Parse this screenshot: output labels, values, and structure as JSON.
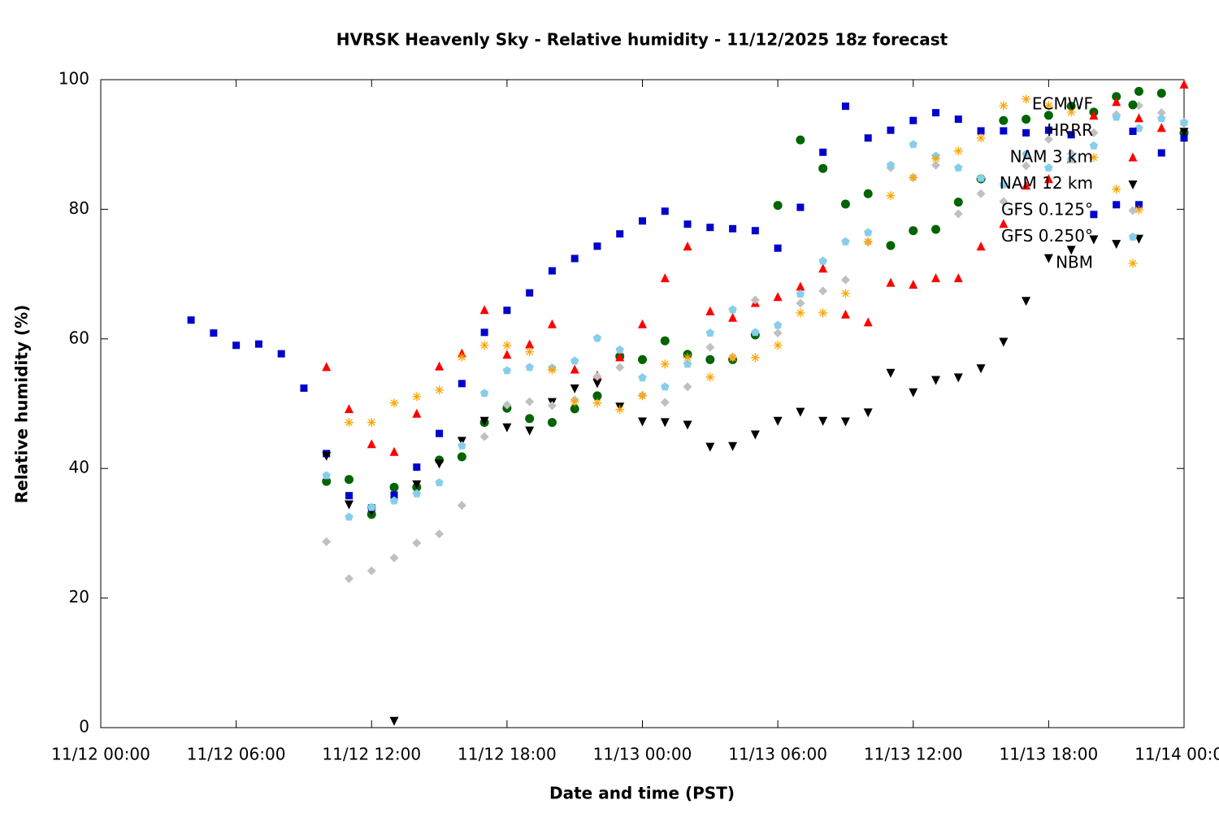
{
  "chart_data": {
    "type": "scatter",
    "title": "HVRSK Heavenly Sky - Relative humidity - 11/12/2025 18z forecast",
    "x_label": "Date and time (PST)",
    "y_label": "Relative humidity (%)",
    "xlim": [
      "11/12 00:00",
      "11/14 00:00"
    ],
    "xticks": [
      "11/12 00:00",
      "11/12 06:00",
      "11/12 12:00",
      "11/12 18:00",
      "11/13 00:00",
      "11/13 06:00",
      "11/13 12:00",
      "11/13 18:00",
      "11/14 00:00"
    ],
    "ylim": [
      0,
      100
    ],
    "yticks": [
      0,
      20,
      40,
      60,
      80,
      100
    ],
    "grid": false,
    "legend": "top-right",
    "x": [
      "11/12 04:00",
      "11/12 05:00",
      "11/12 06:00",
      "11/12 07:00",
      "11/12 08:00",
      "11/12 09:00",
      "11/12 10:00",
      "11/12 11:00",
      "11/12 12:00",
      "11/12 13:00",
      "11/12 14:00",
      "11/12 15:00",
      "11/12 16:00",
      "11/12 17:00",
      "11/12 18:00",
      "11/12 19:00",
      "11/12 20:00",
      "11/12 21:00",
      "11/12 22:00",
      "11/12 23:00",
      "11/13 00:00",
      "11/13 01:00",
      "11/13 02:00",
      "11/13 03:00",
      "11/13 04:00",
      "11/13 05:00",
      "11/13 06:00",
      "11/13 07:00",
      "11/13 08:00",
      "11/13 09:00",
      "11/13 10:00",
      "11/13 11:00",
      "11/13 12:00",
      "11/13 13:00",
      "11/13 14:00",
      "11/13 15:00",
      "11/13 16:00",
      "11/13 17:00",
      "11/13 18:00",
      "11/13 19:00",
      "11/13 20:00",
      "11/13 21:00",
      "11/13 22:00",
      "11/13 23:00",
      "11/14 00:00"
    ],
    "series": [
      {
        "name": "ECMWF",
        "color": "#006400",
        "marker": "circle",
        "values": [
          null,
          null,
          null,
          null,
          null,
          null,
          38.0,
          38.3,
          32.9,
          37.1,
          37.1,
          41.3,
          41.8,
          47.1,
          49.3,
          47.7,
          47.1,
          49.2,
          51.2,
          57.3,
          56.8,
          59.7,
          57.6,
          56.8,
          56.8,
          60.6,
          80.6,
          90.7,
          86.3,
          80.8,
          82.4,
          74.4,
          76.7,
          76.9,
          81.1,
          84.7,
          93.7,
          93.9,
          94.5,
          95.9,
          95.0,
          97.4,
          98.2,
          97.9,
          91.8
        ]
      },
      {
        "name": "HRRR",
        "color": "#0000cc",
        "marker": "square",
        "values": [
          62.9,
          60.9,
          59.0,
          59.2,
          57.7,
          52.4,
          42.3,
          35.8,
          33.9,
          35.9,
          40.2,
          45.4,
          53.1,
          61.0,
          64.4,
          67.1,
          70.5,
          72.4,
          74.3,
          76.2,
          78.2,
          79.7,
          77.7,
          77.2,
          77.0,
          76.7,
          74.0,
          80.3,
          88.8,
          95.9,
          91.0,
          92.2,
          93.7,
          94.9,
          93.9,
          92.1,
          92.1,
          91.8,
          92.2,
          91.5,
          79.2,
          80.7,
          80.7,
          88.7,
          91.0
        ]
      },
      {
        "name": "NAM 3 km",
        "color": "#ff0000",
        "marker": "triangle-up",
        "values": [
          null,
          null,
          null,
          null,
          null,
          null,
          55.6,
          49.1,
          43.7,
          42.5,
          48.4,
          55.7,
          57.7,
          64.4,
          57.5,
          59.1,
          62.2,
          55.2,
          54.3,
          57.1,
          62.2,
          69.3,
          74.2,
          64.2,
          63.2,
          65.5,
          66.4,
          68.0,
          70.8,
          63.7,
          62.5,
          68.6,
          68.3,
          69.3,
          69.3,
          74.2,
          77.7,
          83.6,
          84.6,
          87.7,
          94.4,
          96.5,
          94.0,
          92.5,
          99.2
        ]
      },
      {
        "name": "NAM 12 km",
        "color": "#000000",
        "marker": "triangle-down",
        "values": [
          null,
          null,
          null,
          null,
          null,
          null,
          42.0,
          34.5,
          33.5,
          1.1,
          37.6,
          40.8,
          44.3,
          47.4,
          46.4,
          45.9,
          50.3,
          52.4,
          53.2,
          49.6,
          47.3,
          47.2,
          46.8,
          43.4,
          43.5,
          45.3,
          47.4,
          48.8,
          47.4,
          47.3,
          48.7,
          54.8,
          51.8,
          53.7,
          54.1,
          55.5,
          59.6,
          65.9,
          72.5,
          73.8,
          75.4,
          74.7,
          75.5,
          null,
          92.0
        ]
      },
      {
        "name": "GFS 0.125°",
        "color": "#c0c0c0",
        "marker": "diamond",
        "values": [
          null,
          null,
          null,
          null,
          null,
          null,
          28.7,
          23.0,
          24.2,
          26.2,
          28.5,
          29.9,
          34.3,
          44.9,
          49.8,
          50.3,
          49.7,
          50.6,
          54.2,
          55.6,
          51.3,
          50.2,
          52.6,
          58.7,
          57.2,
          66.0,
          60.9,
          65.5,
          67.4,
          69.1,
          74.9,
          86.4,
          84.9,
          86.8,
          79.3,
          82.4,
          81.2,
          86.7,
          90.8,
          88.6,
          91.8,
          94.6,
          96.0,
          94.9,
          93.2
        ]
      },
      {
        "name": "GFS 0.250°",
        "color": "#87ceeb",
        "marker": "pentagon",
        "values": [
          null,
          null,
          null,
          null,
          null,
          null,
          38.9,
          32.5,
          34.0,
          35.0,
          36.1,
          37.8,
          43.5,
          51.6,
          55.1,
          55.6,
          55.5,
          56.6,
          60.1,
          58.3,
          54.0,
          52.6,
          56.1,
          60.9,
          64.5,
          61.0,
          62.1,
          66.9,
          72.0,
          75.0,
          76.4,
          86.8,
          90.0,
          88.2,
          86.4,
          84.8,
          83.8,
          88.5,
          86.4,
          87.7,
          89.8,
          94.2,
          92.5,
          94.0,
          93.4
        ]
      },
      {
        "name": "NBM",
        "color": "#ffa500",
        "marker": "asterisk",
        "values": [
          null,
          null,
          null,
          null,
          null,
          null,
          null,
          47.1,
          47.1,
          50.1,
          51.1,
          52.1,
          57.2,
          59.0,
          59.0,
          58.0,
          55.2,
          50.3,
          50.1,
          49.1,
          51.2,
          56.1,
          57.1,
          54.1,
          57.1,
          57.1,
          59.0,
          64.0,
          64.0,
          67.0,
          75.0,
          82.1,
          84.9,
          87.8,
          89.0,
          91.0,
          96.0,
          97.0,
          96.0,
          95.0,
          88.0,
          83.1,
          79.9,
          null,
          null
        ]
      }
    ]
  }
}
